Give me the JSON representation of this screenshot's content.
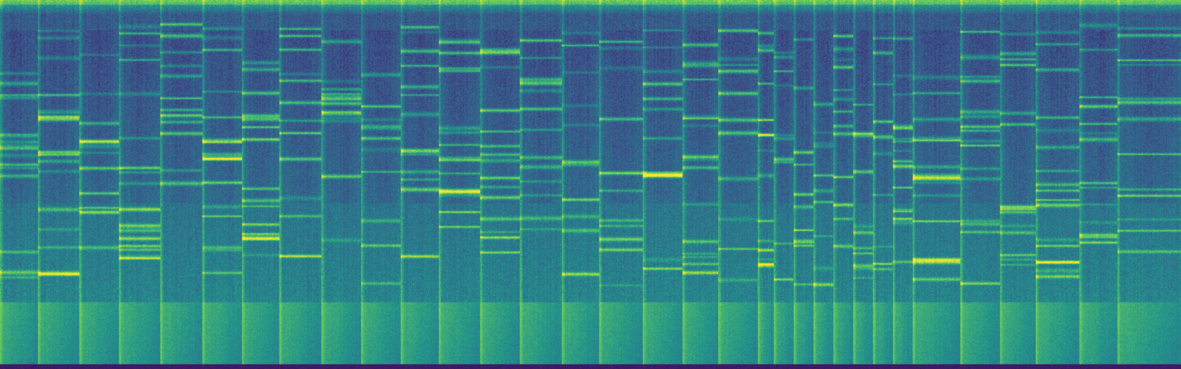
{
  "image": {
    "kind": "spectrogram",
    "colormap": "viridis",
    "colormap_stops": [
      "#440154",
      "#3b528b",
      "#21918c",
      "#5ec962",
      "#fde725"
    ],
    "labels_shown": false
  }
}
